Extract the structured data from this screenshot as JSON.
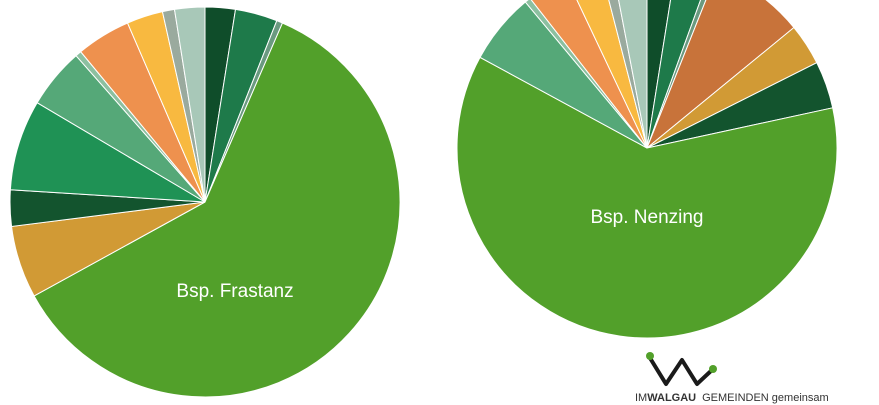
{
  "chart_data": [
    {
      "type": "pie",
      "title": "Bsp. Frastanz",
      "values": [
        2.5,
        3.5,
        0.5,
        60.5,
        6,
        3,
        7.5,
        5,
        0.5,
        4.5,
        3,
        1,
        2.5
      ],
      "colors": [
        "#0f4d2a",
        "#1e7a4a",
        "#6a9a80",
        "#52a02a",
        "#d19a35",
        "#13542e",
        "#1f9255",
        "#55a878",
        "#8cc0a0",
        "#ee914e",
        "#f8b940",
        "#9aaa9e",
        "#a8c8b8"
      ]
    },
    {
      "type": "pie",
      "title": "Bsp. Nenzing",
      "values": [
        2.5,
        3,
        0.5,
        8,
        3.5,
        4,
        61,
        6,
        0.5,
        3.5,
        3,
        1,
        3
      ],
      "colors": [
        "#0f4d2a",
        "#1e7a4a",
        "#6a9a80",
        "#c8733a",
        "#d19a35",
        "#13542e",
        "#52a02a",
        "#55a878",
        "#8cc0a0",
        "#ee914e",
        "#f8b940",
        "#9aaa9e",
        "#a8c8b8"
      ]
    }
  ],
  "logo": {
    "prefix": "IM",
    "brand": "WALGAU",
    "tagline": "GEMEINDEN gemeinsam"
  }
}
